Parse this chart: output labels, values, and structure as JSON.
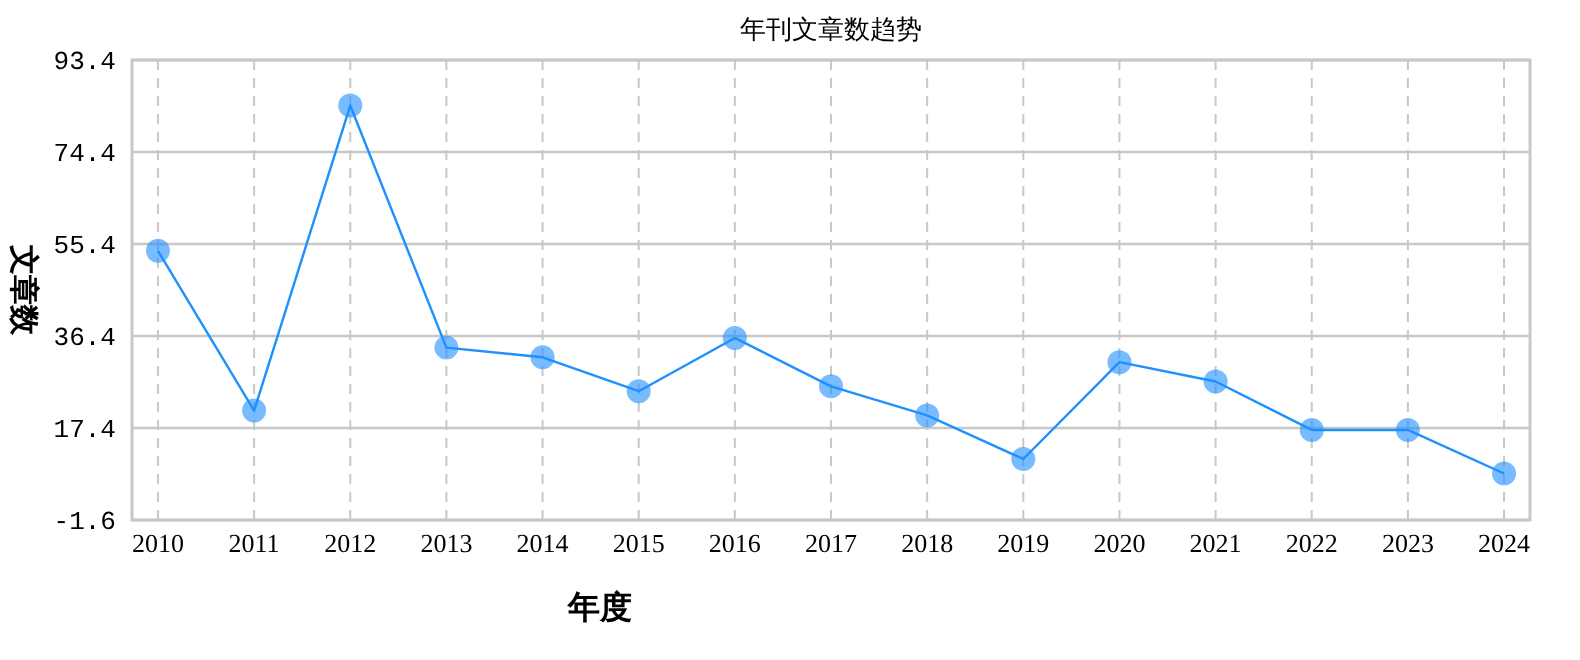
{
  "chart_data": {
    "type": "line",
    "title": "年刊文章数趋势",
    "xlabel": "年度",
    "ylabel": "文章数",
    "categories": [
      "2010",
      "2011",
      "2012",
      "2013",
      "2014",
      "2015",
      "2016",
      "2017",
      "2018",
      "2019",
      "2020",
      "2021",
      "2022",
      "2023",
      "2024"
    ],
    "series": [
      {
        "color": "#1e90ff",
        "values": [
          54,
          21,
          84,
          34,
          32,
          25,
          36,
          26,
          20,
          11,
          31,
          27,
          17,
          17,
          8
        ]
      }
    ],
    "ylim": [
      -1.6,
      93.4
    ],
    "yticks": [
      -1.6,
      17.4,
      36.4,
      55.4,
      74.4,
      93.4
    ],
    "grid": true,
    "marker": "circle",
    "line_style": "solid"
  }
}
